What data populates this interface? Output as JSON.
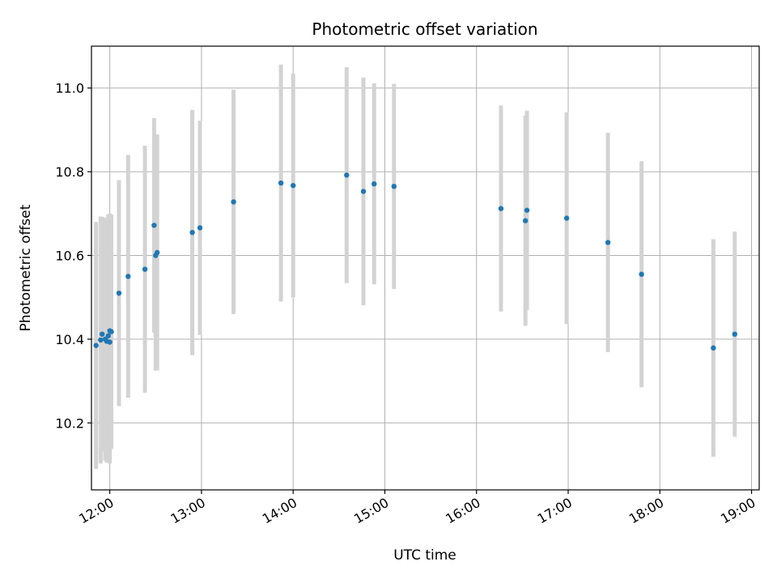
{
  "chart_data": {
    "type": "scatter",
    "title": "Photometric offset variation",
    "xlabel": "UTC time",
    "ylabel": "Photometric offset",
    "x_unit": "UTC time (HH:MM)",
    "xlim": [
      "11:48",
      "19:05"
    ],
    "ylim": [
      10.04,
      11.1
    ],
    "grid": true,
    "colors": {
      "point": "#1f77b4",
      "errorbar": "#d3d3d3",
      "grid": "#b0b0b0"
    },
    "x_ticks": [
      "12:00",
      "13:00",
      "14:00",
      "15:00",
      "16:00",
      "17:00",
      "18:00",
      "19:00"
    ],
    "y_ticks": [
      {
        "value": 10.2,
        "label": "10.2"
      },
      {
        "value": 10.4,
        "label": "10.4"
      },
      {
        "value": 10.6,
        "label": "10.6"
      },
      {
        "value": 10.8,
        "label": "10.8"
      },
      {
        "value": 11.0,
        "label": "11.0"
      }
    ],
    "points": [
      {
        "x": "11:51",
        "y": 10.385,
        "err": 0.295
      },
      {
        "x": "11:54",
        "y": 10.398,
        "err": 0.295
      },
      {
        "x": "11:55",
        "y": 10.412,
        "err": 0.28
      },
      {
        "x": "11:57",
        "y": 10.4,
        "err": 0.29
      },
      {
        "x": "11:58",
        "y": 10.395,
        "err": 0.29
      },
      {
        "x": "11:59",
        "y": 10.408,
        "err": 0.29
      },
      {
        "x": "12:00",
        "y": 10.42,
        "err": 0.28
      },
      {
        "x": "12:00",
        "y": 10.393,
        "err": 0.29
      },
      {
        "x": "12:01",
        "y": 10.418,
        "err": 0.28
      },
      {
        "x": "12:06",
        "y": 10.51,
        "err": 0.27
      },
      {
        "x": "12:12",
        "y": 10.55,
        "err": 0.29
      },
      {
        "x": "12:23",
        "y": 10.567,
        "err": 0.295
      },
      {
        "x": "12:29",
        "y": 10.672,
        "err": 0.256
      },
      {
        "x": "12:30",
        "y": 10.6,
        "err": 0.275
      },
      {
        "x": "12:31",
        "y": 10.607,
        "err": 0.282
      },
      {
        "x": "12:54",
        "y": 10.655,
        "err": 0.293
      },
      {
        "x": "12:59",
        "y": 10.666,
        "err": 0.256
      },
      {
        "x": "13:21",
        "y": 10.728,
        "err": 0.268
      },
      {
        "x": "13:52",
        "y": 10.773,
        "err": 0.283
      },
      {
        "x": "14:00",
        "y": 10.767,
        "err": 0.267
      },
      {
        "x": "14:35",
        "y": 10.792,
        "err": 0.258
      },
      {
        "x": "14:46",
        "y": 10.753,
        "err": 0.272
      },
      {
        "x": "14:53",
        "y": 10.771,
        "err": 0.24
      },
      {
        "x": "15:06",
        "y": 10.765,
        "err": 0.245
      },
      {
        "x": "16:16",
        "y": 10.712,
        "err": 0.246
      },
      {
        "x": "16:32",
        "y": 10.683,
        "err": 0.251
      },
      {
        "x": "16:33",
        "y": 10.708,
        "err": 0.238
      },
      {
        "x": "16:59",
        "y": 10.689,
        "err": 0.253
      },
      {
        "x": "17:26",
        "y": 10.631,
        "err": 0.262
      },
      {
        "x": "17:48",
        "y": 10.555,
        "err": 0.27
      },
      {
        "x": "18:35",
        "y": 10.379,
        "err": 0.26
      },
      {
        "x": "18:49",
        "y": 10.412,
        "err": 0.245
      }
    ]
  }
}
